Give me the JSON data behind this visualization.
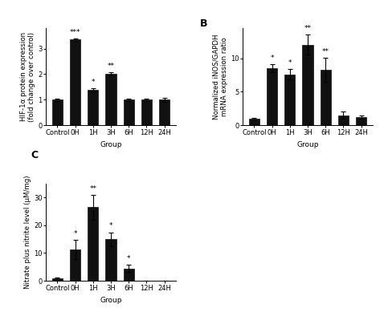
{
  "panel_A": {
    "categories": [
      "Control",
      "0H",
      "1H",
      "3H",
      "6H",
      "12H",
      "24H"
    ],
    "values": [
      1.0,
      3.35,
      1.38,
      2.02,
      1.0,
      1.0,
      1.0
    ],
    "errors": [
      0.04,
      0.05,
      0.07,
      0.06,
      0.04,
      0.04,
      0.08
    ],
    "significance": [
      "",
      "***",
      "*",
      "**",
      "",
      "",
      ""
    ],
    "ylabel": "HIF-1α protein expression\n(fold change over control)",
    "xlabel": "Group",
    "ylim": [
      0,
      3.8
    ],
    "yticks": [
      0,
      1.0,
      2.0,
      3.0
    ]
  },
  "panel_B": {
    "categories": [
      "Control",
      "0H",
      "1H",
      "3H",
      "6H",
      "12H",
      "24H"
    ],
    "values": [
      1.0,
      8.5,
      7.6,
      12.0,
      8.3,
      1.5,
      1.2
    ],
    "errors": [
      0.15,
      0.6,
      0.8,
      1.5,
      1.8,
      0.5,
      0.2
    ],
    "significance": [
      "",
      "*",
      "*",
      "**",
      "**",
      "",
      ""
    ],
    "ylabel": "Normalized iNOS/GAPDH\nmRNA expression ratio",
    "xlabel": "Group",
    "ylim": [
      0,
      14.5
    ],
    "yticks": [
      0,
      5.0,
      10.0
    ]
  },
  "panel_C": {
    "categories": [
      "Control",
      "0H",
      "1H",
      "3H",
      "6H",
      "12H",
      "24H"
    ],
    "values": [
      1.0,
      11.3,
      26.5,
      15.0,
      4.5,
      0.0,
      0.0
    ],
    "errors": [
      0.3,
      3.5,
      4.5,
      2.5,
      1.2,
      0.0,
      0.0
    ],
    "significance": [
      "",
      "*",
      "**",
      "*",
      "*",
      "",
      ""
    ],
    "ylabel": "Nitrate plus nitrite level (μM/mg)",
    "xlabel": "Group",
    "ylim": [
      0,
      35
    ],
    "yticks": [
      0,
      10,
      20,
      30
    ]
  },
  "bar_color": "#111111",
  "bar_width": 0.6,
  "sig_fontsize": 6.5,
  "label_fontsize": 6.5,
  "tick_fontsize": 6,
  "panel_label_fontsize": 9
}
